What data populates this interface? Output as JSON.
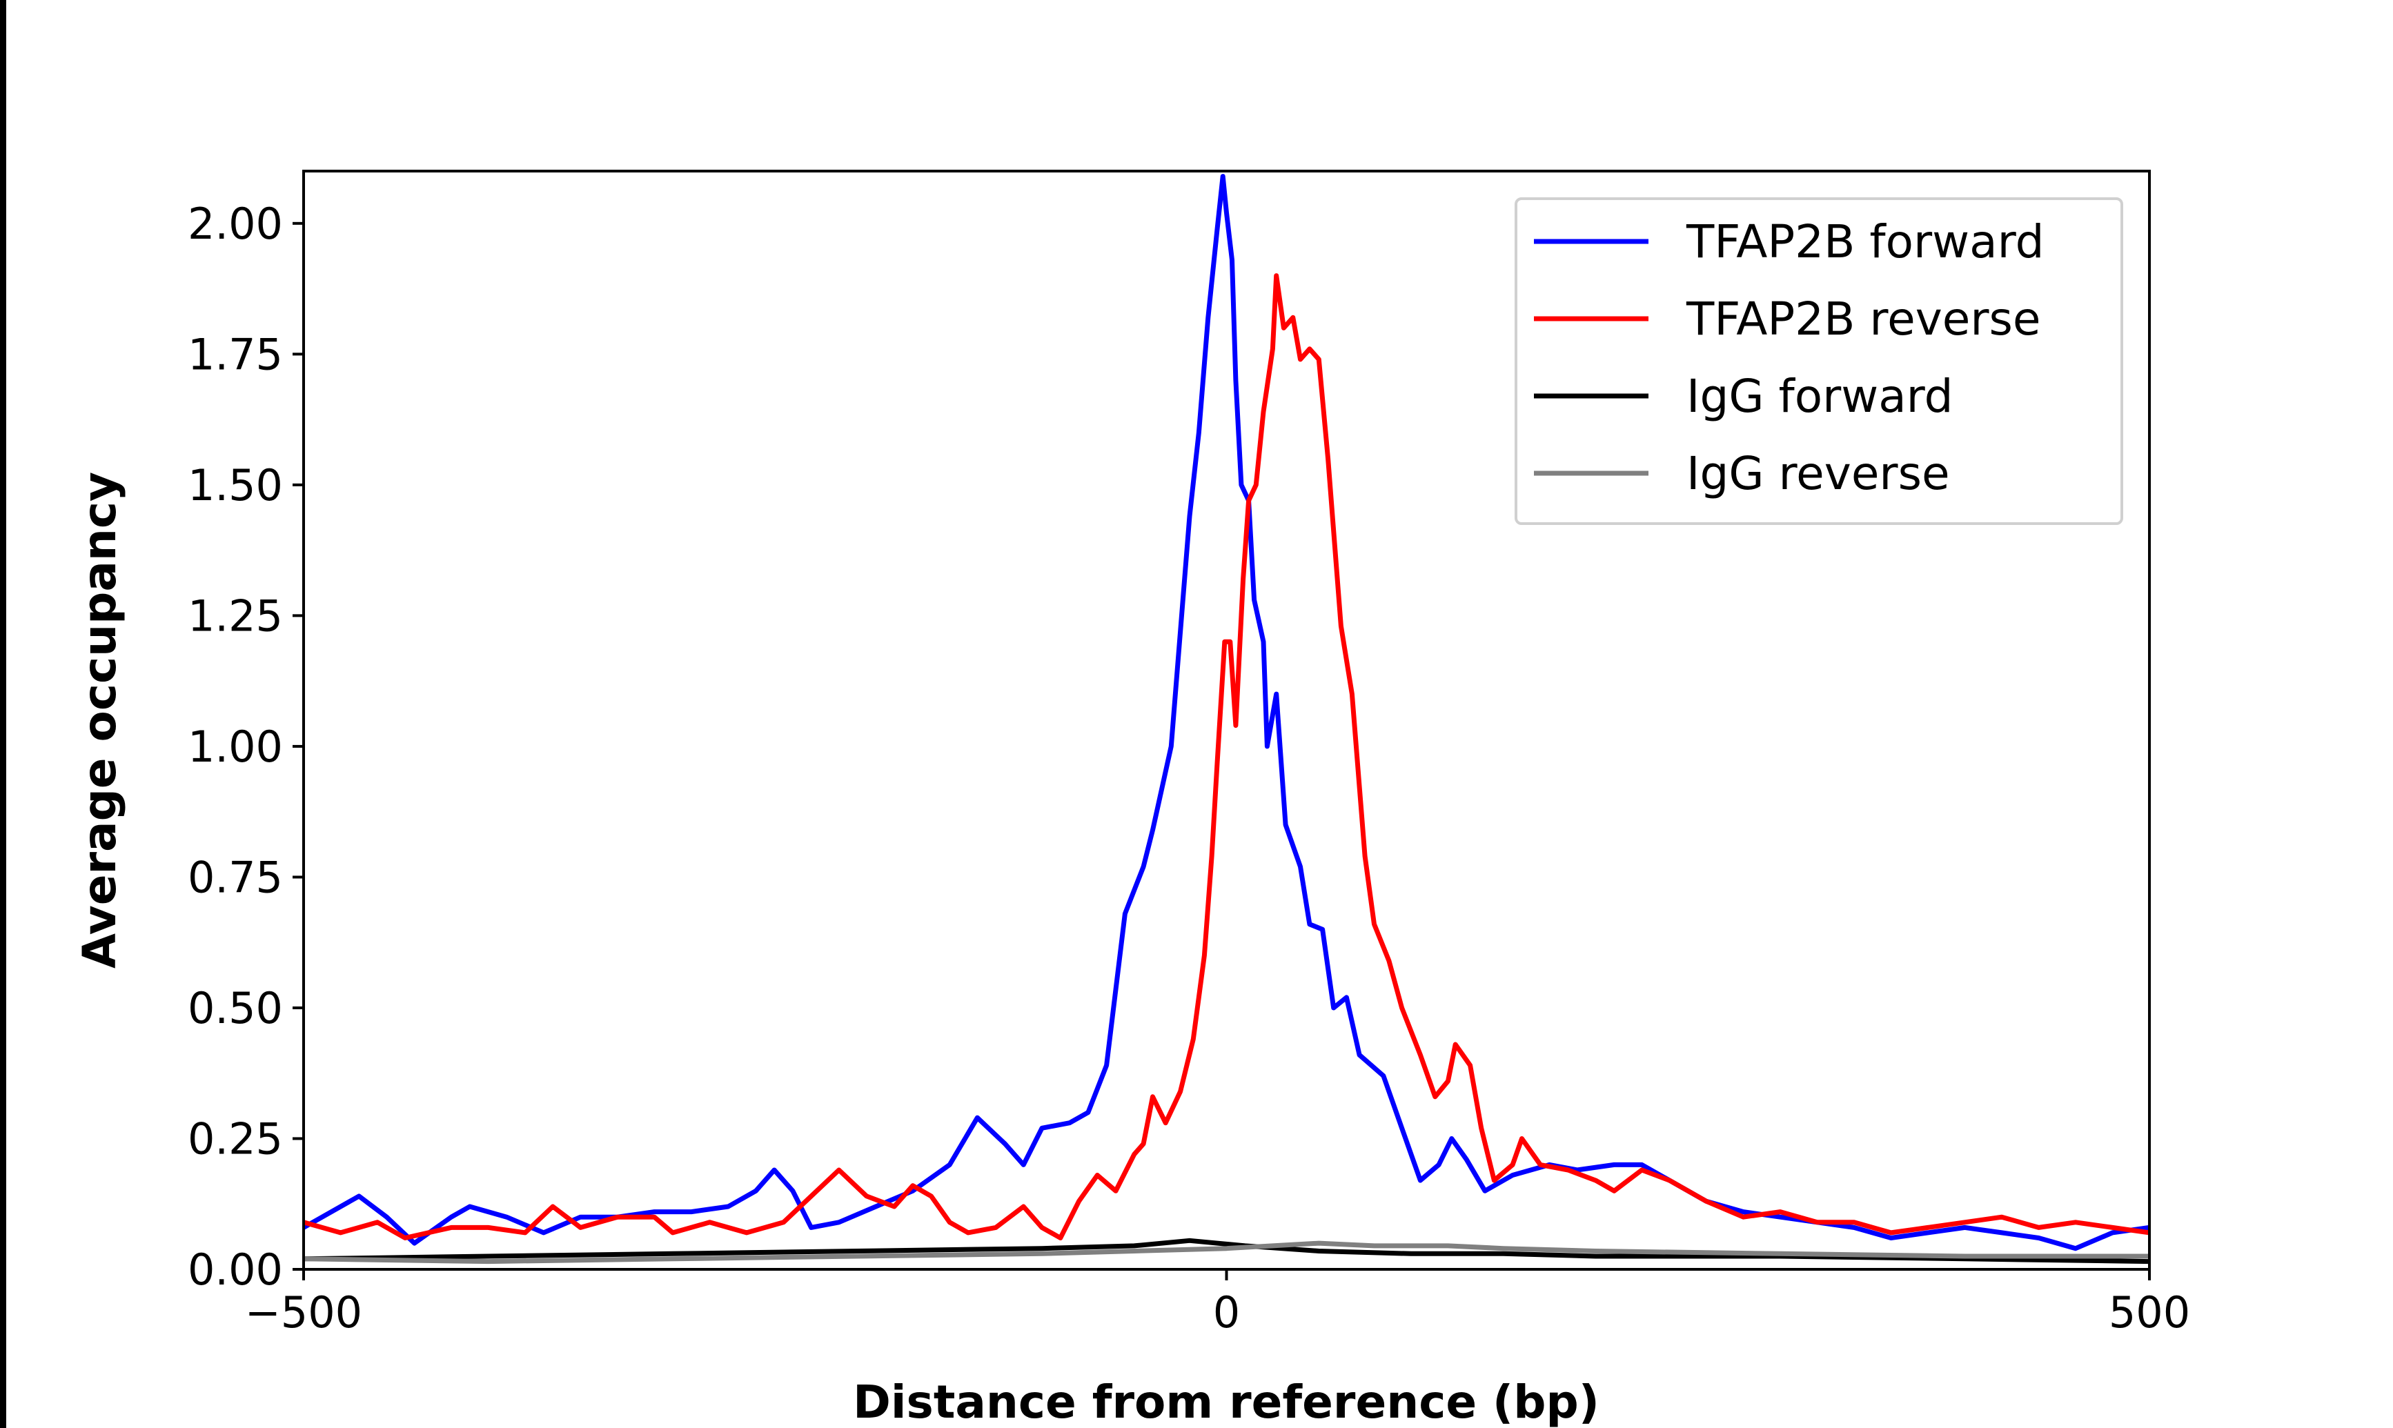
{
  "chart_data": {
    "type": "line",
    "title": "",
    "xlabel": "Distance from reference (bp)",
    "ylabel": "Average occupancy",
    "xlim": [
      -500,
      500
    ],
    "ylim": [
      0,
      2.1
    ],
    "xticks": [
      -500,
      0,
      500
    ],
    "xtick_labels": [
      "−500",
      "0",
      "500"
    ],
    "yticks": [
      0,
      0.25,
      0.5,
      0.75,
      1.0,
      1.25,
      1.5,
      1.75,
      2.0
    ],
    "ytick_labels": [
      "0.00",
      "0.25",
      "0.50",
      "0.75",
      "1.00",
      "1.25",
      "1.50",
      "1.75",
      "2.00"
    ],
    "grid": false,
    "legend_position": "top-right",
    "series": [
      {
        "name": "TFAP2B forward",
        "color": "#0000ff",
        "x": [
          -500,
          -470,
          -455,
          -440,
          -420,
          -410,
          -390,
          -370,
          -350,
          -330,
          -310,
          -290,
          -270,
          -255,
          -245,
          -235,
          -225,
          -210,
          -190,
          -170,
          -150,
          -135,
          -120,
          -110,
          -100,
          -85,
          -75,
          -65,
          -55,
          -45,
          -40,
          -30,
          -20,
          -15,
          -10,
          -5,
          -2,
          0,
          3,
          5,
          8,
          12,
          15,
          20,
          22,
          27,
          32,
          40,
          45,
          52,
          58,
          65,
          72,
          85,
          95,
          105,
          115,
          122,
          130,
          140,
          155,
          175,
          190,
          210,
          225,
          240,
          260,
          280,
          300,
          320,
          340,
          360,
          380,
          400,
          420,
          440,
          460,
          480,
          500
        ],
        "y": [
          0.08,
          0.14,
          0.1,
          0.05,
          0.1,
          0.12,
          0.1,
          0.07,
          0.1,
          0.1,
          0.11,
          0.11,
          0.12,
          0.15,
          0.19,
          0.15,
          0.08,
          0.09,
          0.12,
          0.15,
          0.2,
          0.29,
          0.24,
          0.2,
          0.27,
          0.28,
          0.3,
          0.39,
          0.68,
          0.77,
          0.84,
          1.0,
          1.44,
          1.6,
          1.82,
          1.99,
          2.09,
          2.02,
          1.93,
          1.7,
          1.5,
          1.47,
          1.28,
          1.2,
          1.0,
          1.1,
          0.85,
          0.77,
          0.66,
          0.65,
          0.5,
          0.52,
          0.41,
          0.37,
          0.27,
          0.17,
          0.2,
          0.25,
          0.21,
          0.15,
          0.18,
          0.2,
          0.19,
          0.2,
          0.2,
          0.17,
          0.13,
          0.11,
          0.1,
          0.09,
          0.08,
          0.06,
          0.07,
          0.08,
          0.07,
          0.06,
          0.04,
          0.07,
          0.08
        ]
      },
      {
        "name": "TFAP2B reverse",
        "color": "#ff0000",
        "x": [
          -500,
          -480,
          -460,
          -445,
          -420,
          -400,
          -380,
          -365,
          -350,
          -330,
          -310,
          -300,
          -280,
          -260,
          -240,
          -225,
          -210,
          -195,
          -180,
          -170,
          -160,
          -150,
          -140,
          -125,
          -110,
          -100,
          -90,
          -80,
          -70,
          -60,
          -50,
          -45,
          -40,
          -33,
          -25,
          -18,
          -12,
          -8,
          -5,
          -1,
          2,
          5,
          9,
          12,
          16,
          20,
          25,
          27,
          31,
          36,
          40,
          45,
          50,
          55,
          62,
          68,
          75,
          80,
          88,
          95,
          105,
          113,
          120,
          124,
          132,
          138,
          145,
          155,
          160,
          170,
          185,
          200,
          210,
          225,
          240,
          260,
          280,
          300,
          320,
          340,
          360,
          380,
          400,
          420,
          440,
          460,
          480,
          500
        ],
        "y": [
          0.09,
          0.07,
          0.09,
          0.06,
          0.08,
          0.08,
          0.07,
          0.12,
          0.08,
          0.1,
          0.1,
          0.07,
          0.09,
          0.07,
          0.09,
          0.14,
          0.19,
          0.14,
          0.12,
          0.16,
          0.14,
          0.09,
          0.07,
          0.08,
          0.12,
          0.08,
          0.06,
          0.13,
          0.18,
          0.15,
          0.22,
          0.24,
          0.33,
          0.28,
          0.34,
          0.44,
          0.6,
          0.79,
          0.97,
          1.2,
          1.2,
          1.04,
          1.32,
          1.47,
          1.5,
          1.64,
          1.76,
          1.9,
          1.8,
          1.82,
          1.74,
          1.76,
          1.74,
          1.55,
          1.23,
          1.1,
          0.79,
          0.66,
          0.59,
          0.5,
          0.41,
          0.33,
          0.36,
          0.43,
          0.39,
          0.27,
          0.17,
          0.2,
          0.25,
          0.2,
          0.19,
          0.17,
          0.15,
          0.19,
          0.17,
          0.13,
          0.1,
          0.11,
          0.09,
          0.09,
          0.07,
          0.08,
          0.09,
          0.1,
          0.08,
          0.09,
          0.08,
          0.07
        ]
      },
      {
        "name": "IgG forward",
        "color": "#000000",
        "x": [
          -500,
          -400,
          -300,
          -200,
          -100,
          -50,
          -20,
          10,
          50,
          100,
          150,
          200,
          300,
          400,
          500
        ],
        "y": [
          0.02,
          0.025,
          0.03,
          0.035,
          0.04,
          0.045,
          0.055,
          0.045,
          0.035,
          0.03,
          0.03,
          0.025,
          0.025,
          0.02,
          0.015
        ]
      },
      {
        "name": "IgG reverse",
        "color": "#808080",
        "x": [
          -500,
          -400,
          -300,
          -200,
          -100,
          -50,
          0,
          50,
          80,
          120,
          150,
          200,
          300,
          400,
          500
        ],
        "y": [
          0.02,
          0.015,
          0.02,
          0.025,
          0.03,
          0.035,
          0.04,
          0.05,
          0.045,
          0.045,
          0.04,
          0.035,
          0.03,
          0.025,
          0.025
        ]
      }
    ]
  }
}
